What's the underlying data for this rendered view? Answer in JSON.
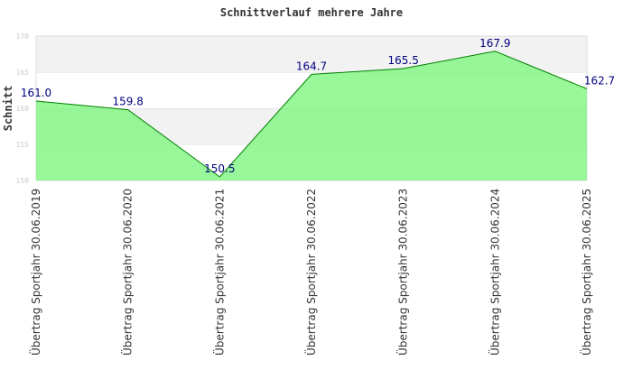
{
  "chart_data": {
    "type": "area",
    "title": "Schnittverlauf mehrere Jahre",
    "xlabel": "",
    "ylabel": "Schnitt",
    "ylim": [
      150,
      170
    ],
    "yticks": [
      "150",
      "155",
      "160",
      "165",
      "170"
    ],
    "categories": [
      "Übertrag Sportjahr 30.06.2019",
      "Übertrag Sportjahr 30.06.2020",
      "Übertrag Sportjahr 30.06.2021",
      "Übertrag Sportjahr 30.06.2022",
      "Übertrag Sportjahr 30.06.2023",
      "Übertrag Sportjahr 30.06.2024",
      "Übertrag Sportjahr 30.06.2025"
    ],
    "values": [
      161.0,
      159.8,
      150.5,
      164.7,
      165.5,
      167.9,
      162.7
    ],
    "labels": [
      "161.0",
      "159.8",
      "150.5",
      "164.7",
      "165.5",
      "167.9",
      "162.7"
    ],
    "colors": {
      "fill": "#7ef57e",
      "line": "#008000",
      "label": "#000080"
    }
  }
}
